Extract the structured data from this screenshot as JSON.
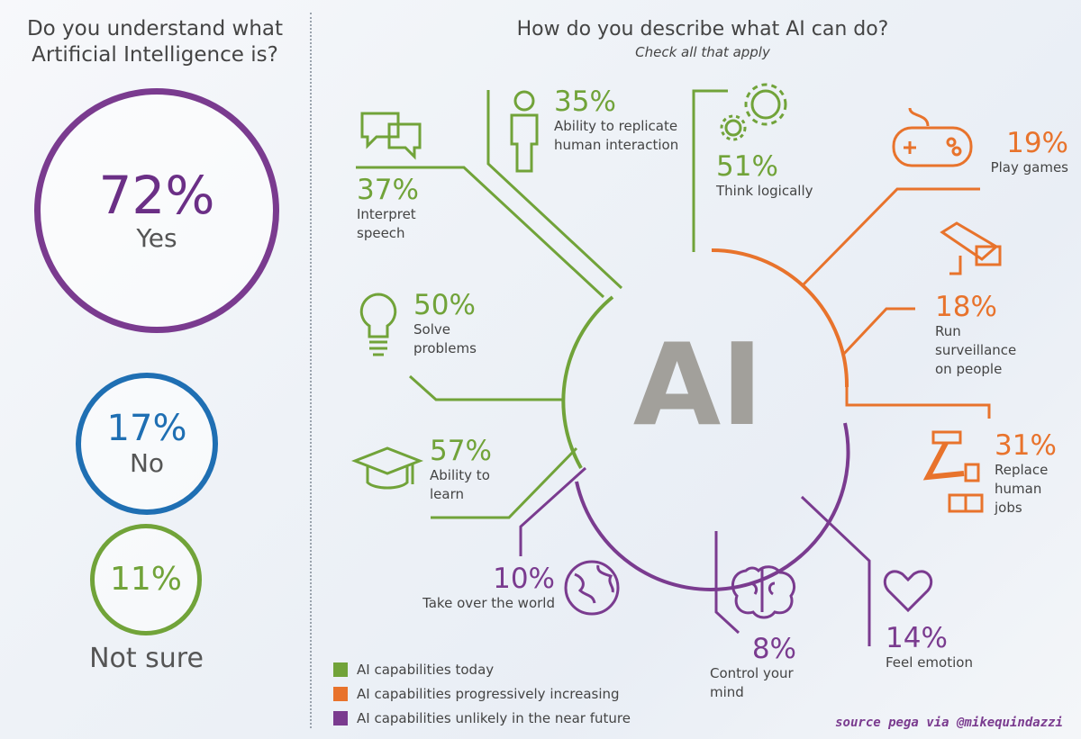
{
  "left": {
    "question": "Do you understand what Artificial Intelligence is?",
    "answers": [
      {
        "pct": "72%",
        "label": "Yes",
        "color": "#7a3b8f"
      },
      {
        "pct": "17%",
        "label": "No",
        "color": "#1f6fb3"
      },
      {
        "pct": "11%",
        "label": "Not sure",
        "color": "#71a339"
      }
    ]
  },
  "right": {
    "question": "How do you describe what AI can do?",
    "subtitle": "Check all that apply",
    "center_label": "AI"
  },
  "items": [
    {
      "pct": "37%",
      "label": "Interpret speech",
      "group": "today"
    },
    {
      "pct": "35%",
      "label": "Ability to replicate human interaction",
      "group": "today"
    },
    {
      "pct": "51%",
      "label": "Think logically",
      "group": "today"
    },
    {
      "pct": "50%",
      "label": "Solve problems",
      "group": "today"
    },
    {
      "pct": "57%",
      "label": "Ability to learn",
      "group": "today"
    },
    {
      "pct": "19%",
      "label": "Play games",
      "group": "increasing"
    },
    {
      "pct": "18%",
      "label": "Run surveillance on people",
      "group": "increasing"
    },
    {
      "pct": "31%",
      "label": "Replace human jobs",
      "group": "increasing"
    },
    {
      "pct": "10%",
      "label": "Take over the world",
      "group": "unlikely"
    },
    {
      "pct": "8%",
      "label": "Control your mind",
      "group": "unlikely"
    },
    {
      "pct": "14%",
      "label": "Feel emotion",
      "group": "unlikely"
    }
  ],
  "legend": [
    {
      "label": "AI capabilities today",
      "color": "#71a339"
    },
    {
      "label": "AI capabilities progressively increasing",
      "color": "#e8732c"
    },
    {
      "label": "AI capabilities unlikely in the near future",
      "color": "#7a3b8f"
    }
  ],
  "source": "source pega via @mikequindazzi",
  "chart_data": [
    {
      "type": "pie",
      "title": "Do you understand what Artificial Intelligence is?",
      "categories": [
        "Yes",
        "No",
        "Not sure"
      ],
      "values": [
        72,
        17,
        11
      ]
    },
    {
      "type": "bar",
      "title": "How do you describe what AI can do?",
      "subtitle": "Check all that apply",
      "categories": [
        "Interpret speech",
        "Ability to replicate human interaction",
        "Think logically",
        "Solve problems",
        "Ability to learn",
        "Play games",
        "Run surveillance on people",
        "Replace human jobs",
        "Take over the world",
        "Control your mind",
        "Feel emotion"
      ],
      "values": [
        37,
        35,
        51,
        50,
        57,
        19,
        18,
        31,
        10,
        8,
        14
      ],
      "series_groups": {
        "AI capabilities today": [
          "Interpret speech",
          "Ability to replicate human interaction",
          "Think logically",
          "Solve problems",
          "Ability to learn"
        ],
        "AI capabilities progressively increasing": [
          "Play games",
          "Run surveillance on people",
          "Replace human jobs"
        ],
        "AI capabilities unlikely in the near future": [
          "Take over the world",
          "Control your mind",
          "Feel emotion"
        ]
      }
    }
  ]
}
